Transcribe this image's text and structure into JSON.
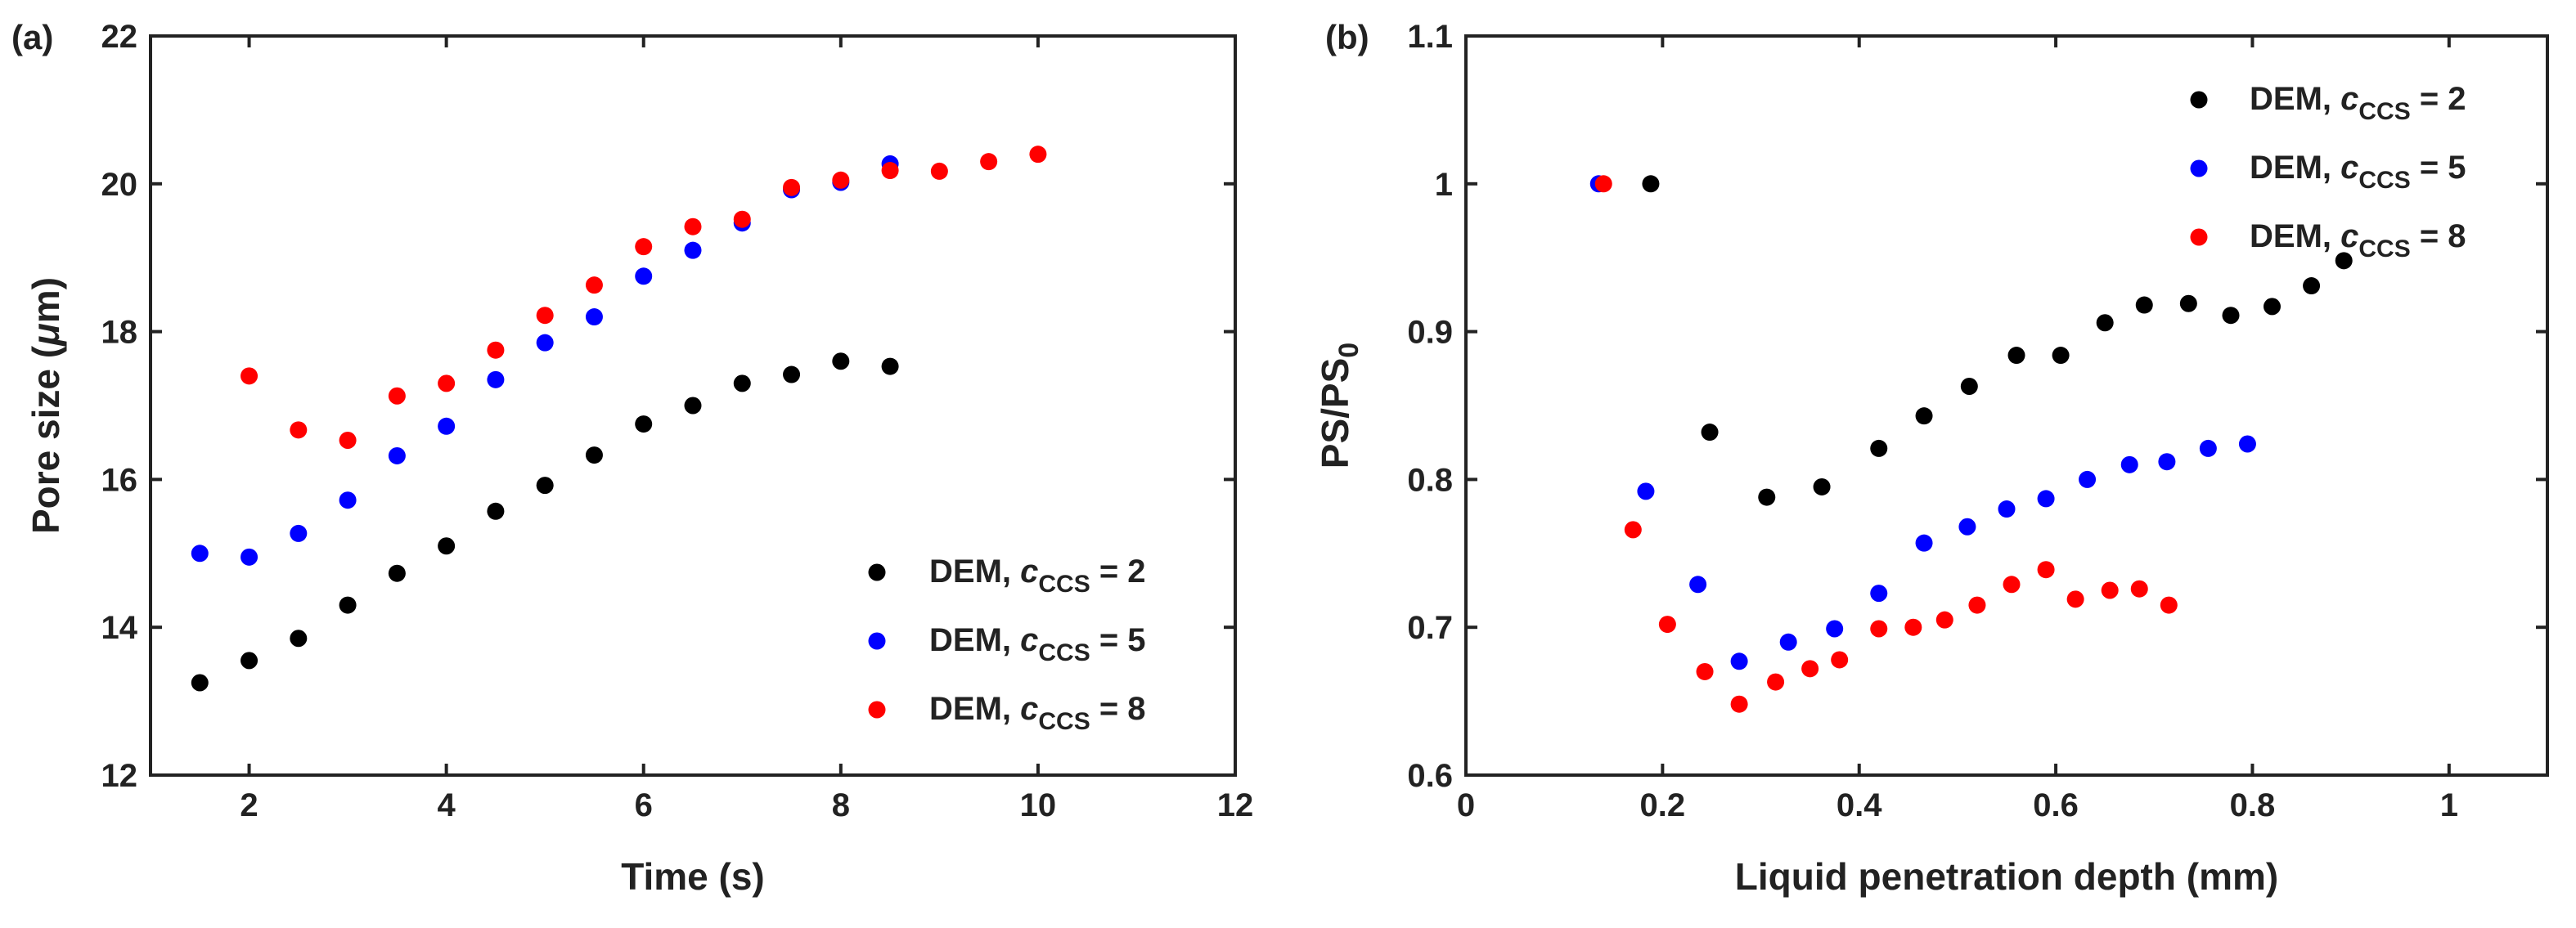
{
  "chart_data": [
    {
      "type": "scatter",
      "panel_label": "(a)",
      "xlabel": "Time (s)",
      "ylabel_prefix": "Pore size (",
      "ylabel_mu": "μ",
      "ylabel_suffix": "m)",
      "xlim": [
        1,
        12
      ],
      "ylim": [
        12,
        22
      ],
      "xticks": [
        2,
        4,
        6,
        8,
        10,
        12
      ],
      "yticks": [
        12,
        14,
        16,
        18,
        20,
        22
      ],
      "legend_position": "bottom-right",
      "series": [
        {
          "name": "DEM, cCCS = 2",
          "legend_prefix": "DEM, ",
          "legend_italic": "c",
          "legend_sub": "CCS",
          "legend_suffix": " = 2",
          "color": "#000000",
          "x": [
            1.5,
            2,
            2.5,
            3,
            3.5,
            4,
            4.5,
            5,
            5.5,
            6,
            6.5,
            7,
            7.5,
            8,
            8.5
          ],
          "y": [
            13.25,
            13.55,
            13.85,
            14.3,
            14.73,
            15.1,
            15.57,
            15.92,
            16.33,
            16.75,
            17.0,
            17.3,
            17.42,
            17.6,
            17.53
          ]
        },
        {
          "name": "DEM, cCCS = 5",
          "legend_prefix": "DEM, ",
          "legend_italic": "c",
          "legend_sub": "CCS",
          "legend_suffix": " = 5",
          "color": "#0000ff",
          "x": [
            1.5,
            2,
            2.5,
            3,
            3.5,
            4,
            4.5,
            5,
            5.5,
            6,
            6.5,
            7,
            7.5,
            8,
            8.5
          ],
          "y": [
            15.0,
            14.95,
            15.27,
            15.72,
            16.32,
            16.72,
            17.35,
            17.85,
            18.2,
            18.75,
            19.1,
            19.47,
            19.92,
            20.02,
            20.27
          ]
        },
        {
          "name": "DEM, cCCS = 8",
          "legend_prefix": "DEM, ",
          "legend_italic": "c",
          "legend_sub": "CCS",
          "legend_suffix": " = 8",
          "color": "#ff0000",
          "x": [
            2,
            2.5,
            3,
            3.5,
            4,
            4.5,
            5,
            5.5,
            6,
            6.5,
            7,
            7.5,
            8,
            8.5,
            9,
            9.5,
            10
          ],
          "y": [
            17.4,
            16.67,
            16.53,
            17.13,
            17.3,
            17.75,
            18.22,
            18.63,
            19.15,
            19.42,
            19.52,
            19.95,
            20.05,
            20.18,
            20.17,
            20.3,
            20.4
          ]
        }
      ]
    },
    {
      "type": "scatter",
      "panel_label": "(b)",
      "xlabel": "Liquid penetration depth (mm)",
      "ylabel_prefix": "PS/PS",
      "ylabel_sub": "0",
      "xlim": [
        0,
        1.1
      ],
      "ylim": [
        0.6,
        1.1
      ],
      "xticks": [
        0,
        0.2,
        0.4,
        0.6,
        0.8,
        1
      ],
      "xtick_labels": [
        "0",
        "0.2",
        "0.4",
        "0.6",
        "0.8",
        "1"
      ],
      "yticks": [
        0.6,
        0.7,
        0.8,
        0.9,
        1.0,
        1.1
      ],
      "ytick_labels": [
        "0.6",
        "0.7",
        "0.8",
        "0.9",
        "1",
        "1.1"
      ],
      "legend_position": "top-right",
      "series": [
        {
          "name": "DEM, cCCS = 2",
          "legend_prefix": "DEM, ",
          "legend_italic": "c",
          "legend_sub": "CCS",
          "legend_suffix": " = 2",
          "color": "#000000",
          "x": [
            0.188,
            0.248,
            0.306,
            0.362,
            0.42,
            0.466,
            0.512,
            0.56,
            0.605,
            0.65,
            0.69,
            0.735,
            0.778,
            0.82,
            0.86,
            0.893
          ],
          "y": [
            1.0,
            0.832,
            0.788,
            0.795,
            0.821,
            0.843,
            0.863,
            0.884,
            0.884,
            0.906,
            0.918,
            0.919,
            0.911,
            0.917,
            0.931,
            0.948
          ]
        },
        {
          "name": "DEM, cCCS = 5",
          "legend_prefix": "DEM, ",
          "legend_italic": "c",
          "legend_sub": "CCS",
          "legend_suffix": " = 5",
          "color": "#0000ff",
          "x": [
            0.135,
            0.183,
            0.236,
            0.278,
            0.328,
            0.375,
            0.42,
            0.466,
            0.51,
            0.55,
            0.59,
            0.632,
            0.675,
            0.713,
            0.755,
            0.795
          ],
          "y": [
            1.0,
            0.792,
            0.729,
            0.677,
            0.69,
            0.699,
            0.723,
            0.757,
            0.768,
            0.78,
            0.787,
            0.8,
            0.81,
            0.812,
            0.821,
            0.824
          ]
        },
        {
          "name": "DEM, cCCS = 8",
          "legend_prefix": "DEM, ",
          "legend_italic": "c",
          "legend_sub": "CCS",
          "legend_suffix": " = 8",
          "color": "#ff0000",
          "x": [
            0.14,
            0.17,
            0.205,
            0.243,
            0.278,
            0.315,
            0.35,
            0.38,
            0.42,
            0.455,
            0.487,
            0.52,
            0.555,
            0.59,
            0.62,
            0.655,
            0.685,
            0.715
          ],
          "y": [
            1.0,
            0.766,
            0.702,
            0.67,
            0.648,
            0.663,
            0.672,
            0.678,
            0.699,
            0.7,
            0.705,
            0.715,
            0.729,
            0.739,
            0.719,
            0.725,
            0.726,
            0.715
          ]
        }
      ]
    }
  ]
}
